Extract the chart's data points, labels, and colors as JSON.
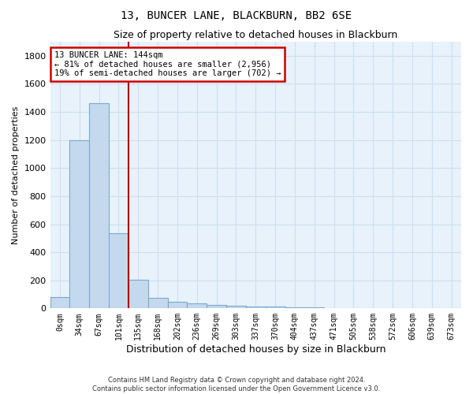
{
  "title": "13, BUNCER LANE, BLACKBURN, BB2 6SE",
  "subtitle": "Size of property relative to detached houses in Blackburn",
  "xlabel": "Distribution of detached houses by size in Blackburn",
  "ylabel": "Number of detached properties",
  "categories": [
    "0sqm",
    "34sqm",
    "67sqm",
    "101sqm",
    "135sqm",
    "168sqm",
    "202sqm",
    "236sqm",
    "269sqm",
    "303sqm",
    "337sqm",
    "370sqm",
    "404sqm",
    "437sqm",
    "471sqm",
    "505sqm",
    "538sqm",
    "572sqm",
    "606sqm",
    "639sqm",
    "673sqm"
  ],
  "values": [
    80,
    1200,
    1460,
    535,
    205,
    75,
    45,
    35,
    25,
    20,
    15,
    12,
    10,
    8,
    0,
    0,
    0,
    0,
    0,
    0,
    0
  ],
  "bar_color": "#c5d9ee",
  "bar_edge_color": "#7aa8cc",
  "grid_color": "#ccdff0",
  "bg_color": "#e8f2fb",
  "vline_color": "#aa0000",
  "annotation_title": "13 BUNCER LANE: 144sqm",
  "annotation_line1": "← 81% of detached houses are smaller (2,956)",
  "annotation_line2": "19% of semi-detached houses are larger (702) →",
  "box_color": "#cc0000",
  "ylim": [
    0,
    1900
  ],
  "ytick_max": 1800,
  "ytick_step": 200,
  "footer_line1": "Contains HM Land Registry data © Crown copyright and database right 2024.",
  "footer_line2": "Contains public sector information licensed under the Open Government Licence v3.0.",
  "vline_bar_index": 3
}
